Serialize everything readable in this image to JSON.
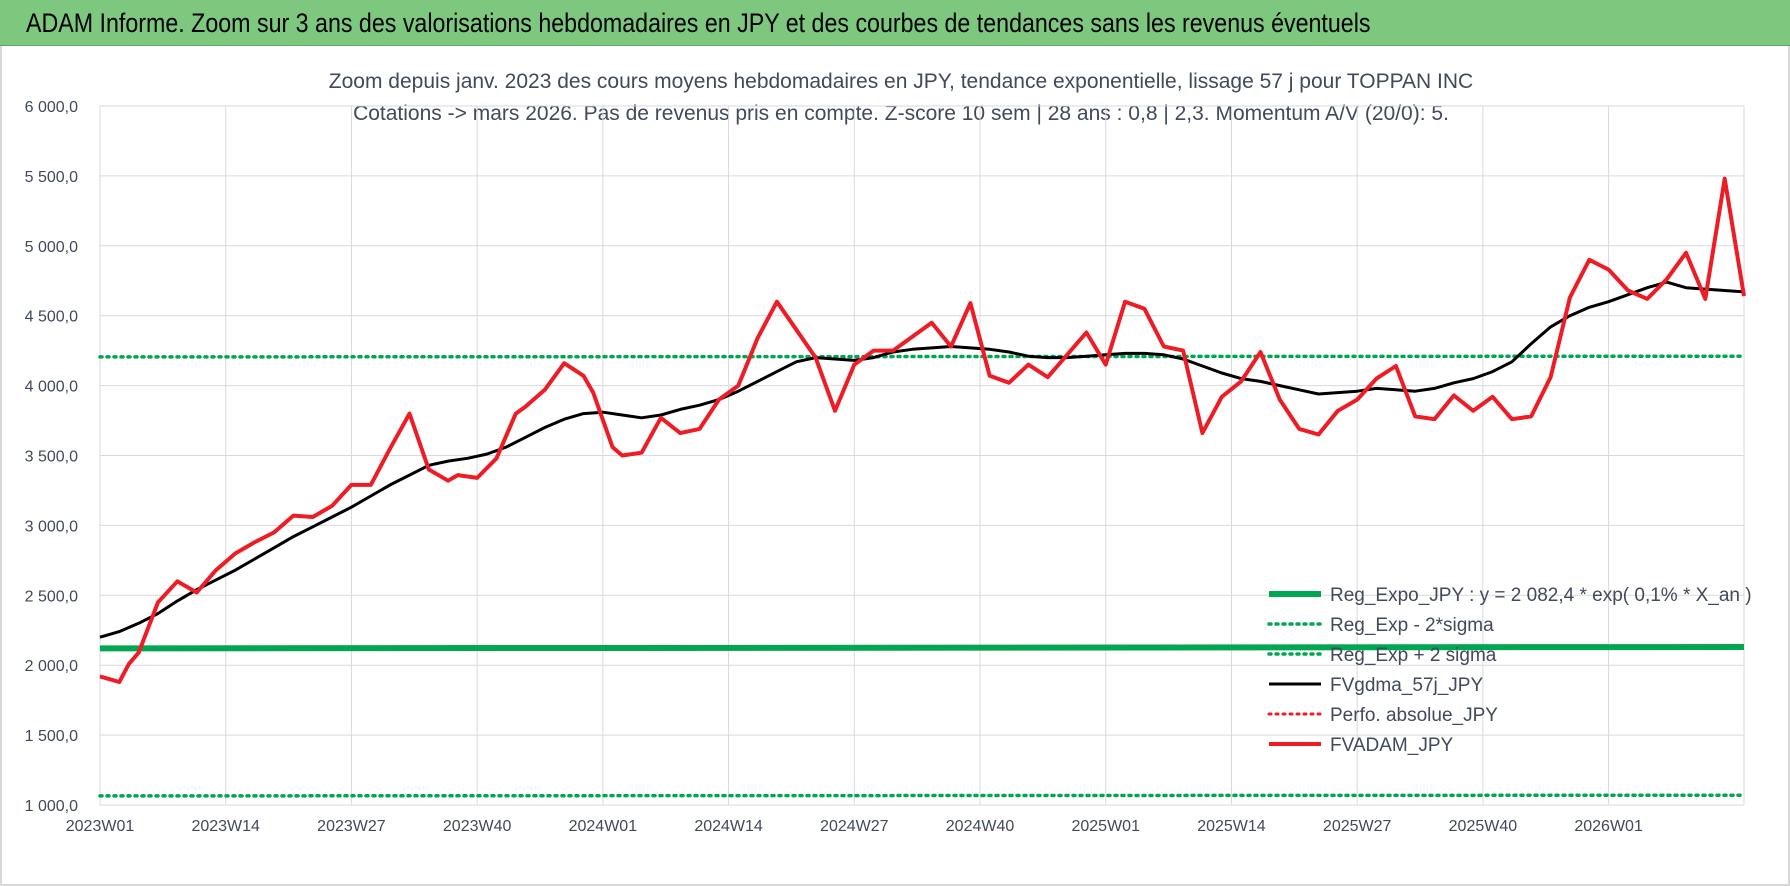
{
  "banner": {
    "title": "ADAM Informe. Zoom sur 3 ans des valorisations hebdomadaires en JPY et des courbes de tendances sans les revenus éventuels"
  },
  "colors": {
    "banner_bg": "#7dc77f",
    "regression": "#00a651",
    "fvgdma": "#000000",
    "fvadam": "#ee1c25",
    "perfo": "#ee1c25",
    "grid": "#d9d9d9"
  },
  "chart_data": {
    "type": "line",
    "title_line1": "Zoom depuis janv. 2023 des cours moyens hebdomadaires en JPY, tendance exponentielle, lissage 57 j pour TOPPAN INC",
    "title_line2": "Cotations -> mars 2026. Pas de revenus pris en compte. Z-score 10 sem | 28 ans : 0,8 | 2,3. Momentum A/V (20/0): 5.",
    "ylim": [
      1000,
      6000
    ],
    "y_ticks": [
      "1 000,0",
      "1 500,0",
      "2 000,0",
      "2 500,0",
      "3 000,0",
      "3 500,0",
      "4 000,0",
      "4 500,0",
      "5 000,0",
      "5 500,0",
      "6 000,0"
    ],
    "x_ticks": [
      "2023W01",
      "2023W14",
      "2023W27",
      "2023W40",
      "2024W01",
      "2024W14",
      "2024W27",
      "2024W40",
      "2025W01",
      "2025W14",
      "2025W27",
      "2025W40",
      "2026W01"
    ],
    "n_weeks": 170,
    "series": [
      {
        "name": "Reg_Expo_JPY : y = 2 082,4 * exp( 0,1% *  X_an )",
        "style": "solid-thick",
        "x": [
          0,
          170
        ],
        "y": [
          2120,
          2130
        ]
      },
      {
        "name": "Reg_Exp - 2*sigma",
        "style": "dotted",
        "x": [
          0,
          170
        ],
        "y": [
          1065,
          1070
        ]
      },
      {
        "name": "Reg_Exp + 2 sigma",
        "style": "dotted",
        "x": [
          0,
          170
        ],
        "y": [
          4205,
          4210
        ]
      },
      {
        "name": "FVgdma_57j_JPY",
        "style": "solid",
        "x": [
          0,
          2,
          4,
          6,
          8,
          10,
          12,
          14,
          16,
          18,
          20,
          22,
          24,
          26,
          28,
          30,
          32,
          34,
          36,
          38,
          40,
          42,
          44,
          46,
          48,
          50,
          52,
          54,
          56,
          58,
          60,
          62,
          64,
          66,
          68,
          70,
          72,
          74,
          76,
          78,
          80,
          82,
          84,
          86,
          88,
          90,
          92,
          94,
          96,
          98,
          100,
          102,
          104,
          106,
          108,
          110,
          112,
          114,
          116,
          118,
          120,
          122,
          124,
          126,
          128,
          130,
          132,
          134,
          136,
          138,
          140,
          142,
          144,
          146,
          148,
          150,
          152,
          154,
          156,
          158,
          160,
          162,
          164,
          166,
          168,
          170
        ],
        "y": [
          2200,
          2240,
          2300,
          2370,
          2460,
          2540,
          2610,
          2680,
          2760,
          2840,
          2920,
          2990,
          3060,
          3130,
          3210,
          3290,
          3360,
          3430,
          3460,
          3480,
          3510,
          3560,
          3630,
          3700,
          3760,
          3800,
          3810,
          3790,
          3770,
          3790,
          3830,
          3860,
          3900,
          3960,
          4030,
          4100,
          4170,
          4200,
          4190,
          4180,
          4200,
          4240,
          4260,
          4270,
          4280,
          4270,
          4260,
          4240,
          4210,
          4200,
          4200,
          4210,
          4220,
          4230,
          4230,
          4220,
          4190,
          4140,
          4090,
          4050,
          4030,
          4000,
          3970,
          3940,
          3950,
          3960,
          3980,
          3970,
          3960,
          3980,
          4020,
          4050,
          4100,
          4170,
          4300,
          4420,
          4500,
          4560,
          4600,
          4650,
          4700,
          4740,
          4700,
          4690,
          4680,
          4670
        ]
      },
      {
        "name": "Perfo. absolue_JPY",
        "style": "dotted",
        "x": [],
        "y": []
      },
      {
        "name": "FVADAM_JPY",
        "style": "solid-thick",
        "x": [
          0,
          2,
          3,
          4,
          6,
          8,
          10,
          12,
          14,
          16,
          18,
          20,
          22,
          24,
          26,
          28,
          30,
          32,
          34,
          36,
          37,
          39,
          41,
          43,
          44,
          46,
          48,
          50,
          51,
          53,
          54,
          56,
          58,
          60,
          62,
          64,
          66,
          68,
          70,
          72,
          74,
          76,
          78,
          80,
          82,
          84,
          86,
          88,
          90,
          92,
          94,
          96,
          98,
          100,
          102,
          104,
          106,
          108,
          110,
          112,
          114,
          116,
          118,
          120,
          122,
          124,
          126,
          128,
          130,
          132,
          134,
          136,
          138,
          140,
          142,
          144,
          146,
          148,
          150,
          152,
          154,
          156,
          158,
          160,
          162,
          164,
          166,
          168,
          170
        ],
        "y": [
          1920,
          1880,
          2010,
          2090,
          2450,
          2600,
          2520,
          2680,
          2800,
          2880,
          2950,
          3070,
          3060,
          3140,
          3290,
          3290,
          3550,
          3800,
          3400,
          3320,
          3360,
          3340,
          3480,
          3800,
          3850,
          3970,
          4160,
          4070,
          3950,
          3560,
          3500,
          3520,
          3770,
          3660,
          3690,
          3900,
          4000,
          4340,
          4600,
          4400,
          4200,
          3820,
          4150,
          4250,
          4250,
          4350,
          4450,
          4280,
          4590,
          4070,
          4020,
          4150,
          4060,
          4220,
          4380,
          4150,
          4600,
          4550,
          4280,
          4250,
          3660,
          3920,
          4030,
          4240,
          3900,
          3690,
          3650,
          3820,
          3900,
          4050,
          4140,
          3780,
          3760,
          3930,
          3820,
          3920,
          3760,
          3780,
          4060,
          4630,
          4900,
          4830,
          4680,
          4620,
          4760,
          4950,
          4620,
          5480,
          4640
        ]
      }
    ]
  }
}
